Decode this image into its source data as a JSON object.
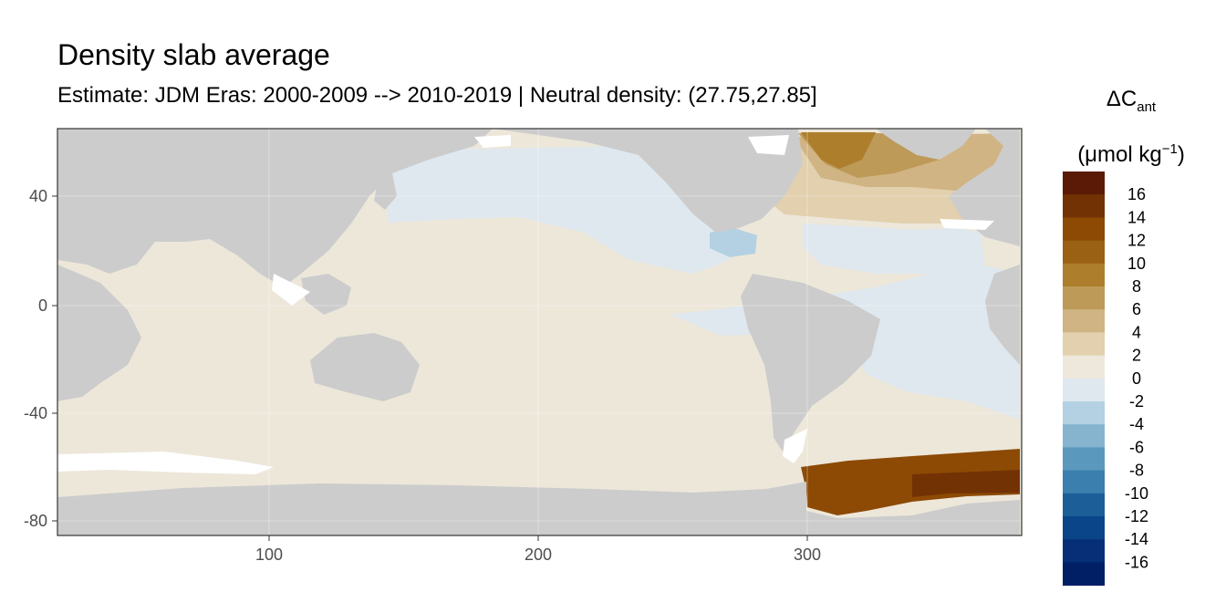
{
  "title": "Density slab average",
  "subtitle": "Estimate: JDM Eras: 2000-2009 --> 2010-2019 | Neutral density: (27.75,27.85]",
  "legend": {
    "symbol": "ΔC",
    "subscript": "ant",
    "unit_prefix": "(μmol kg",
    "unit_superscript": "−1",
    "unit_suffix": ")",
    "labels": [
      "16",
      "14",
      "12",
      "10",
      "8",
      "6",
      "4",
      "2",
      "0",
      "-2",
      "-4",
      "-6",
      "-8",
      "-10",
      "-12",
      "-14",
      "-16"
    ],
    "colors": [
      "#5a1a05",
      "#733204",
      "#8c4a04",
      "#9a6014",
      "#ad7e2c",
      "#bd9a58",
      "#d0b483",
      "#e2d0ae",
      "#eee8dc",
      "#dfe8ee",
      "#b3d1e2",
      "#86b4cf",
      "#5b98bd",
      "#3a7fad",
      "#1c5f98",
      "#0a4589",
      "#062f78",
      "#011f64"
    ]
  },
  "axes": {
    "x_ticks": [
      "100",
      "200",
      "300"
    ],
    "y_ticks": [
      "40",
      "0",
      "-40",
      "-80"
    ],
    "xlim": [
      20,
      380
    ],
    "ylim": [
      -85,
      65
    ]
  },
  "colors": {
    "land": "#cccccc",
    "missing": "#ffffff",
    "ocean_bg": "#ede7da"
  }
}
